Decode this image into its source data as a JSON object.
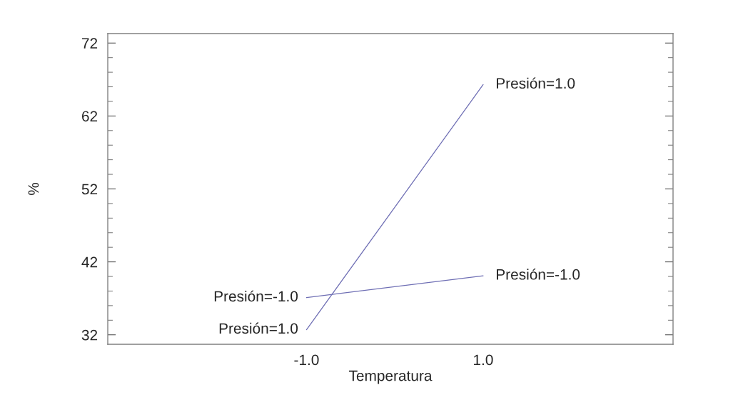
{
  "chart_data": {
    "type": "line",
    "xlabel": "Temperatura",
    "ylabel": "%",
    "x": [
      -1.0,
      1.0
    ],
    "series": [
      {
        "name": "Presión=1.0",
        "color": "#6e6eb4",
        "values": [
          32.7,
          66.3
        ]
      },
      {
        "name": "Presión=-1.0",
        "color": "#6e6eb4",
        "values": [
          37.1,
          40.1
        ]
      }
    ],
    "xlim": [
      -3.25,
      3.15
    ],
    "xticks": [
      {
        "value": -1.0,
        "label": "-1.0"
      },
      {
        "value": 1.0,
        "label": "1.0"
      }
    ],
    "ylim": [
      30.7,
      73.3
    ],
    "yticks": [
      32,
      {
        "value": 34,
        "label": null
      },
      {
        "value": 36,
        "label": null
      },
      {
        "value": 38,
        "label": null
      },
      {
        "value": 40,
        "label": null
      },
      42,
      {
        "value": 44,
        "label": null
      },
      {
        "value": 46,
        "label": null
      },
      {
        "value": 48,
        "label": null
      },
      {
        "value": 50,
        "label": null
      },
      52,
      {
        "value": 54,
        "label": null
      },
      {
        "value": 56,
        "label": null
      },
      {
        "value": 58,
        "label": null
      },
      {
        "value": 60,
        "label": null
      },
      62,
      {
        "value": 64,
        "label": null
      },
      {
        "value": 66,
        "label": null
      },
      {
        "value": 68,
        "label": null
      },
      {
        "value": 70,
        "label": null
      },
      72
    ],
    "grid": false,
    "legend": false,
    "marker": "none",
    "line_style": "solid"
  }
}
